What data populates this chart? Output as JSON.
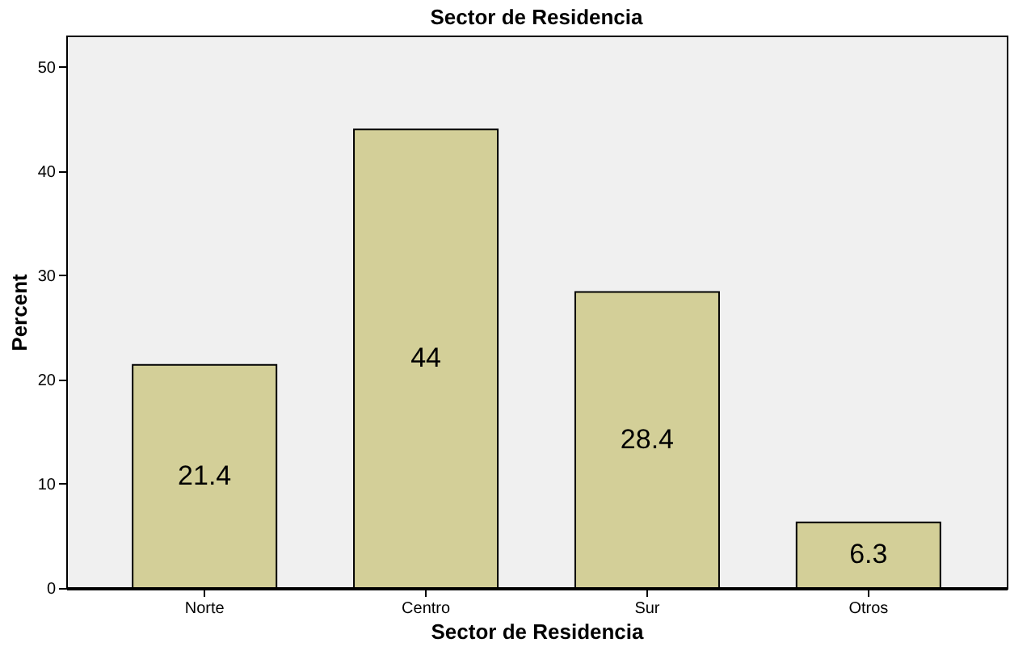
{
  "chart_data": {
    "type": "bar",
    "title": "Sector de Residencia",
    "xlabel": "Sector de Residencia",
    "ylabel": "Percent",
    "categories": [
      "Norte",
      "Centro",
      "Sur",
      "Otros"
    ],
    "values": [
      21.4,
      44,
      28.4,
      6.3
    ],
    "value_labels": [
      "21.4",
      "44",
      "28.4",
      "6.3"
    ],
    "color": "#d3cf98",
    "ylim": [
      0,
      53
    ],
    "yticks": [
      0,
      10,
      20,
      30,
      40,
      50
    ],
    "grid": false
  }
}
